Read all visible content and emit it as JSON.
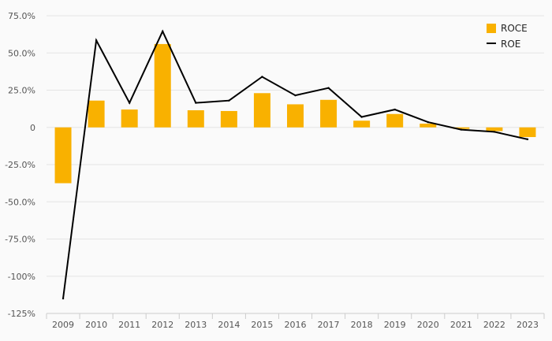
{
  "chart_data": {
    "type": "bar",
    "categories": [
      "2009",
      "2010",
      "2011",
      "2012",
      "2013",
      "2014",
      "2015",
      "2016",
      "2017",
      "2018",
      "2019",
      "2020",
      "2021",
      "2022",
      "2023"
    ],
    "series": [
      {
        "name": "ROCE",
        "type": "bar",
        "color": "#f9b100",
        "values": [
          -37.5,
          18,
          12,
          56,
          11.5,
          11,
          23,
          15.5,
          18.5,
          4.5,
          9,
          2.5,
          -1,
          -2.5,
          -6.5
        ]
      },
      {
        "name": "ROE",
        "type": "line",
        "color": "#000000",
        "values": [
          -115,
          58.5,
          16.5,
          64.5,
          16.5,
          18,
          34,
          21.5,
          26.5,
          7,
          12,
          3.5,
          -1.5,
          -3,
          -8
        ]
      }
    ],
    "y_ticks": [
      {
        "value": 75,
        "label": "75.0%"
      },
      {
        "value": 50,
        "label": "50.0%"
      },
      {
        "value": 25,
        "label": "25.0%"
      },
      {
        "value": 0,
        "label": "0"
      },
      {
        "value": -25,
        "label": "-25.0%"
      },
      {
        "value": -50,
        "label": "-50.0%"
      },
      {
        "value": -75,
        "label": "-75.0%"
      },
      {
        "value": -100,
        "label": "-100%"
      },
      {
        "value": -125,
        "label": "-125%"
      }
    ],
    "ylim": [
      -125,
      75
    ],
    "grid": true,
    "legend_position": "top-right"
  }
}
